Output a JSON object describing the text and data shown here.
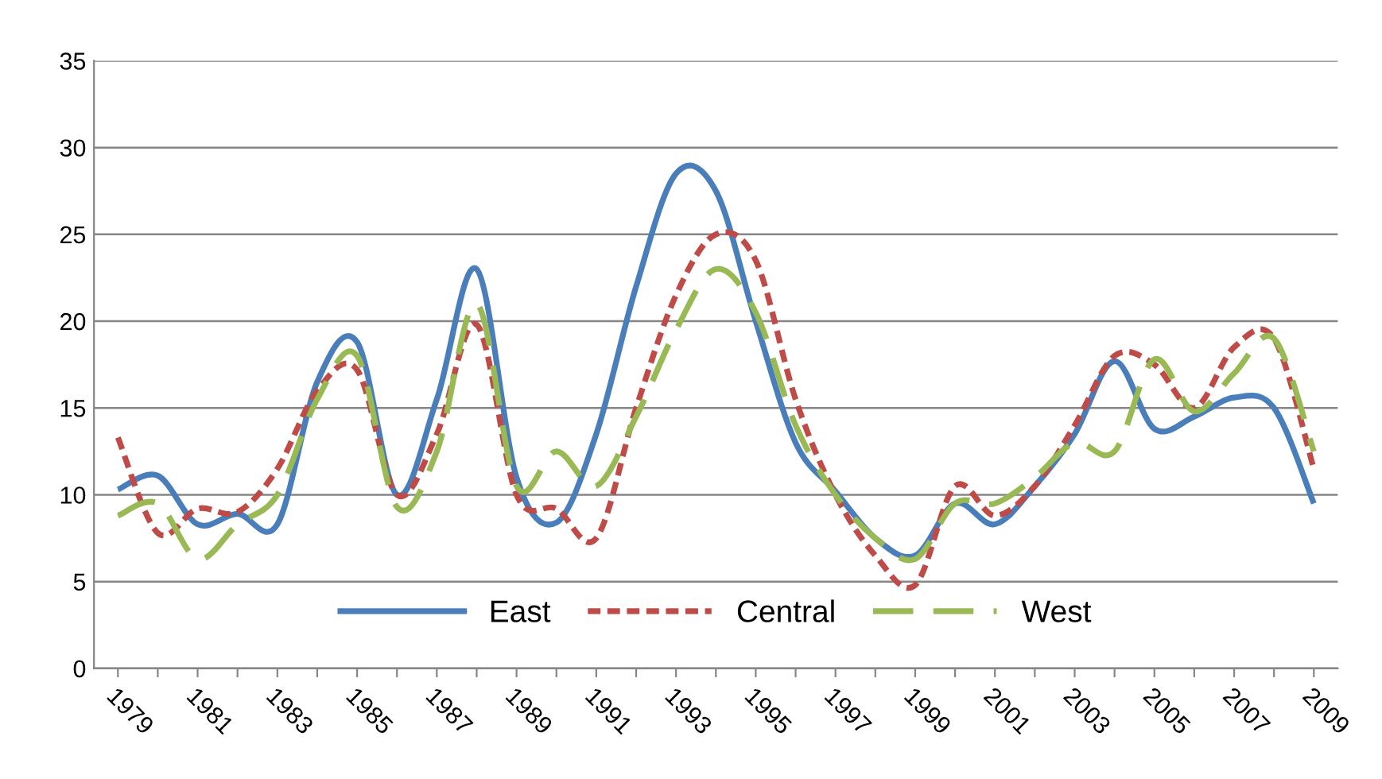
{
  "chart_data": {
    "type": "line",
    "categories": [
      "1979",
      null,
      "1981",
      null,
      "1983",
      null,
      "1985",
      null,
      "1987",
      null,
      "1989",
      null,
      "1991",
      null,
      "1993",
      null,
      "1995",
      null,
      "1997",
      null,
      "1999",
      null,
      "2001",
      null,
      "2003",
      null,
      "2005",
      null,
      "2007",
      null,
      "2009"
    ],
    "series": [
      {
        "name": "East",
        "color": "#4a7ebb",
        "line_style": "solid",
        "values": [
          10.3,
          11.1,
          8.3,
          8.9,
          8.3,
          16.5,
          18.8,
          10,
          15.5,
          23,
          11,
          8.4,
          13.5,
          22,
          28.5,
          27.5,
          20,
          13,
          10.2,
          7.5,
          6.5,
          9.5,
          8.3,
          10.5,
          13.5,
          17.7,
          13.8,
          14.5,
          15.6,
          15,
          9.5
        ]
      },
      {
        "name": "Central",
        "color": "#be4b48",
        "line_style": "dotted",
        "values": [
          13.3,
          7.8,
          9.2,
          9.0,
          11.5,
          16,
          17.2,
          10,
          13.5,
          19.8,
          10,
          9.2,
          7.5,
          15,
          21.5,
          25,
          23.5,
          15.5,
          10,
          6.5,
          4.8,
          10.5,
          8.8,
          10.5,
          14,
          18,
          17.5,
          15,
          18.5,
          19,
          11.5
        ]
      },
      {
        "name": "West",
        "color": "#98b954",
        "line_style": "dashed",
        "values": [
          8.8,
          9.5,
          6.3,
          8.3,
          10,
          15.5,
          18,
          9.3,
          12.5,
          21,
          10.5,
          12.5,
          10.5,
          14.5,
          19.5,
          23,
          20.5,
          14,
          10,
          7.5,
          6.3,
          9.5,
          9.5,
          11,
          13,
          12.5,
          17.8,
          14.8,
          17,
          19,
          12.5
        ]
      }
    ],
    "ylim": [
      0,
      35
    ],
    "yticks": [
      0,
      5,
      10,
      15,
      20,
      25,
      30,
      35
    ],
    "grid": "y",
    "legend": "bottom",
    "marker": "none"
  }
}
